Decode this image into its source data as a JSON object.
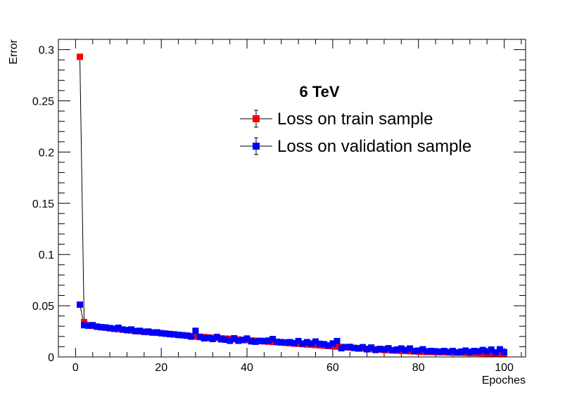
{
  "chart_data": {
    "type": "scatter",
    "title": "",
    "xlabel": "Epoches",
    "ylabel": "Error",
    "xlim": [
      -4,
      105
    ],
    "ylim": [
      0,
      0.31
    ],
    "xticks": [
      0,
      20,
      40,
      60,
      80,
      100
    ],
    "xtick_labels": [
      "0",
      "20",
      "40",
      "60",
      "80",
      "100"
    ],
    "yticks": [
      0,
      0.05,
      0.1,
      0.15,
      0.2,
      0.25,
      0.3
    ],
    "ytick_labels": [
      "0",
      "0.05",
      "0.1",
      "0.15",
      "0.2",
      "0.25",
      "0.3"
    ],
    "legend": {
      "header": "6 TeV",
      "position": "top-right"
    },
    "series": [
      {
        "name": "Loss on train sample",
        "color": "#ff0000",
        "x": [
          1,
          2,
          3,
          4,
          5,
          6,
          7,
          8,
          9,
          10,
          11,
          12,
          13,
          14,
          15,
          16,
          17,
          18,
          19,
          20,
          21,
          22,
          23,
          24,
          25,
          26,
          27,
          28,
          29,
          30,
          31,
          32,
          33,
          34,
          35,
          36,
          37,
          38,
          39,
          40,
          41,
          42,
          43,
          44,
          45,
          46,
          47,
          48,
          49,
          50,
          51,
          52,
          53,
          54,
          55,
          56,
          57,
          58,
          59,
          60,
          61,
          62,
          63,
          64,
          65,
          66,
          67,
          68,
          69,
          70,
          71,
          72,
          73,
          74,
          75,
          76,
          77,
          78,
          79,
          80,
          81,
          82,
          83,
          84,
          85,
          86,
          87,
          88,
          89,
          90,
          91,
          92,
          93,
          94,
          95,
          96,
          97,
          98,
          99,
          100
        ],
        "values": [
          0.293,
          0.034,
          0.031,
          0.0303,
          0.0297,
          0.029,
          0.0285,
          0.028,
          0.0275,
          0.027,
          0.0266,
          0.0262,
          0.0258,
          0.0254,
          0.025,
          0.0246,
          0.0242,
          0.0239,
          0.0236,
          0.0232,
          0.0228,
          0.0224,
          0.022,
          0.0216,
          0.0212,
          0.0208,
          0.0204,
          0.02,
          0.0197,
          0.0194,
          0.0191,
          0.0188,
          0.0185,
          0.0182,
          0.0179,
          0.0176,
          0.0173,
          0.017,
          0.0167,
          0.0164,
          0.0161,
          0.0158,
          0.0155,
          0.0152,
          0.0149,
          0.0146,
          0.0143,
          0.014,
          0.0137,
          0.0134,
          0.0131,
          0.0128,
          0.0125,
          0.0122,
          0.0119,
          0.0116,
          0.0113,
          0.011,
          0.0107,
          0.0104,
          0.0101,
          0.0098,
          0.0095,
          0.0092,
          0.0089,
          0.0086,
          0.0083,
          0.008,
          0.0077,
          0.0074,
          0.0071,
          0.0068,
          0.0066,
          0.0064,
          0.0062,
          0.006,
          0.0058,
          0.0056,
          0.0054,
          0.0052,
          0.005,
          0.0049,
          0.0048,
          0.0047,
          0.0046,
          0.0045,
          0.0044,
          0.0043,
          0.0042,
          0.0041,
          0.004,
          0.0039,
          0.0038,
          0.0037,
          0.0036,
          0.0035,
          0.0034,
          0.0033,
          0.0032,
          0.0031
        ]
      },
      {
        "name": "Loss on validation sample",
        "color": "#0000ff",
        "x": [
          1,
          2,
          3,
          4,
          5,
          6,
          7,
          8,
          9,
          10,
          11,
          12,
          13,
          14,
          15,
          16,
          17,
          18,
          19,
          20,
          21,
          22,
          23,
          24,
          25,
          26,
          27,
          28,
          29,
          30,
          31,
          32,
          33,
          34,
          35,
          36,
          37,
          38,
          39,
          40,
          41,
          42,
          43,
          44,
          45,
          46,
          47,
          48,
          49,
          50,
          51,
          52,
          53,
          54,
          55,
          56,
          57,
          58,
          59,
          60,
          61,
          62,
          63,
          64,
          65,
          66,
          67,
          68,
          69,
          70,
          71,
          72,
          73,
          74,
          75,
          76,
          77,
          78,
          79,
          80,
          81,
          82,
          83,
          84,
          85,
          86,
          87,
          88,
          89,
          90,
          91,
          92,
          93,
          94,
          95,
          96,
          97,
          98,
          99,
          100
        ],
        "values": [
          0.051,
          0.031,
          0.0305,
          0.031,
          0.0295,
          0.029,
          0.0288,
          0.0282,
          0.0275,
          0.0285,
          0.0268,
          0.0262,
          0.0268,
          0.0252,
          0.0255,
          0.0245,
          0.0248,
          0.0238,
          0.024,
          0.0232,
          0.0228,
          0.0222,
          0.022,
          0.0215,
          0.0212,
          0.0208,
          0.0198,
          0.0255,
          0.0195,
          0.0182,
          0.0185,
          0.0175,
          0.0195,
          0.0172,
          0.0168,
          0.0158,
          0.0182,
          0.0158,
          0.0165,
          0.018,
          0.0152,
          0.0148,
          0.0158,
          0.0155,
          0.016,
          0.0175,
          0.0148,
          0.0145,
          0.0142,
          0.0145,
          0.0135,
          0.0155,
          0.013,
          0.0145,
          0.0132,
          0.015,
          0.0128,
          0.0125,
          0.0112,
          0.0132,
          0.0155,
          0.0085,
          0.0095,
          0.0098,
          0.0088,
          0.0082,
          0.0095,
          0.0075,
          0.0092,
          0.0068,
          0.0078,
          0.0075,
          0.0085,
          0.0065,
          0.0072,
          0.0082,
          0.0068,
          0.0082,
          0.0058,
          0.0062,
          0.0075,
          0.0055,
          0.0058,
          0.0055,
          0.0052,
          0.0058,
          0.0048,
          0.0058,
          0.0045,
          0.0052,
          0.0062,
          0.0048,
          0.0058,
          0.0055,
          0.0068,
          0.0055,
          0.0072,
          0.0045,
          0.0075,
          0.0048
        ]
      }
    ]
  }
}
